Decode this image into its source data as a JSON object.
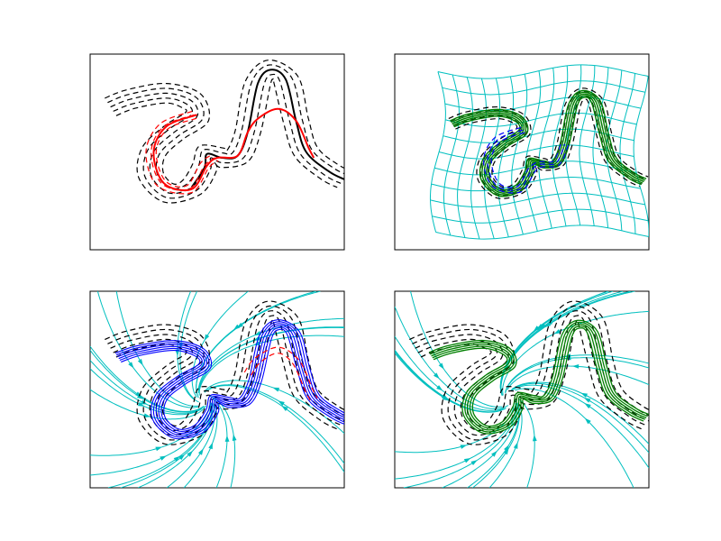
{
  "figure": {
    "rows": 2,
    "cols": 2
  },
  "colors": {
    "demo": "#000000",
    "red": "#ff0000",
    "blue": "#0000ff",
    "green": "#008000",
    "cyan": "#00bfbf",
    "frame": "#000000"
  },
  "chart_data": [
    {
      "type": "line",
      "panel": "top-left",
      "title": "",
      "xlabel": "",
      "ylabel": "",
      "ticks": "none",
      "grid": false,
      "legend": "none",
      "series": [
        {
          "style": "dashed",
          "color": "#000000",
          "role": "demonstrations",
          "count": 5
        },
        {
          "style": "solid",
          "color": "#000000",
          "role": "reproduction"
        },
        {
          "style": "solid",
          "color": "#ff0000",
          "role": "adapted"
        },
        {
          "style": "dashed",
          "color": "#ff0000",
          "role": "adapted-variants",
          "count": 3
        }
      ]
    },
    {
      "type": "line",
      "panel": "top-right",
      "title": "",
      "xlabel": "",
      "ylabel": "",
      "ticks": "none",
      "grid": true,
      "grid_style": "deformed",
      "legend": "none",
      "series": [
        {
          "style": "dashed",
          "color": "#000000",
          "role": "demonstrations",
          "count": 5
        },
        {
          "style": "solid",
          "color": "#008000",
          "role": "reproductions",
          "count": 5
        },
        {
          "style": "dashed",
          "color": "#0000ff",
          "role": "adapted-variants",
          "count": 3
        }
      ]
    },
    {
      "type": "line",
      "panel": "bottom-left",
      "title": "",
      "xlabel": "",
      "ylabel": "",
      "ticks": "none",
      "grid": false,
      "legend": "none",
      "streamlines": {
        "color": "#00bfbf",
        "count": 28
      },
      "series": [
        {
          "style": "dashed",
          "color": "#000000",
          "role": "demonstrations",
          "count": 5
        },
        {
          "style": "solid",
          "color": "#0000ff",
          "role": "reproductions",
          "count": 6
        },
        {
          "style": "dashed",
          "color": "#ff0000",
          "role": "adapted-variants",
          "count": 2
        }
      ]
    },
    {
      "type": "line",
      "panel": "bottom-right",
      "title": "",
      "xlabel": "",
      "ylabel": "",
      "ticks": "none",
      "grid": false,
      "legend": "none",
      "streamlines": {
        "color": "#00bfbf",
        "count": 28
      },
      "series": [
        {
          "style": "dashed",
          "color": "#000000",
          "role": "demonstrations",
          "count": 5
        },
        {
          "style": "solid",
          "color": "#008000",
          "role": "reproductions",
          "count": 5
        }
      ]
    }
  ]
}
